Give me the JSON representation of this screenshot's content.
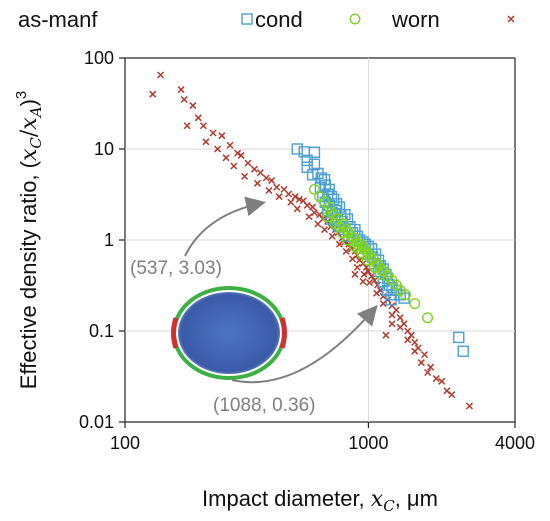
{
  "chart_data": {
    "type": "scatter",
    "title": "",
    "xscale": "log",
    "yscale": "log",
    "xlim": [
      100,
      4000
    ],
    "ylim": [
      0.01,
      100
    ],
    "xticks": [
      100,
      1000,
      4000
    ],
    "xtick_labels": [
      "100",
      "1000",
      "4000"
    ],
    "yticks": [
      0.01,
      0.1,
      1,
      10,
      100
    ],
    "ytick_labels": [
      "0.01",
      "0.1",
      "1",
      "10",
      "100"
    ],
    "grid": true,
    "legend_position": "top",
    "xlabel": {
      "text": "Impact diameter, ",
      "var": "x",
      "sub": "C",
      "unit": ", μm"
    },
    "ylabel": {
      "text": "Effective density ratio, (",
      "var1": "x",
      "sub1": "C",
      "slash": "/",
      "var2": "x",
      "sub2": "A",
      "close": ")",
      "sup": "3"
    },
    "series": [
      {
        "name": "as-manf",
        "marker": "square",
        "color": "#4a9fd4",
        "points": [
          [
            510,
            10.0
          ],
          [
            545,
            9.3
          ],
          [
            560,
            7.5
          ],
          [
            600,
            9.2
          ],
          [
            560,
            6.3
          ],
          [
            600,
            6.8
          ],
          [
            590,
            5.2
          ],
          [
            620,
            5.4
          ],
          [
            640,
            4.8
          ],
          [
            660,
            4.6
          ],
          [
            635,
            3.8
          ],
          [
            665,
            4.0
          ],
          [
            690,
            3.6
          ],
          [
            650,
            3.0
          ],
          [
            680,
            3.2
          ],
          [
            705,
            3.0
          ],
          [
            720,
            2.8
          ],
          [
            665,
            2.6
          ],
          [
            690,
            2.4
          ],
          [
            740,
            2.5
          ],
          [
            760,
            2.3
          ],
          [
            680,
            2.1
          ],
          [
            710,
            2.0
          ],
          [
            735,
            2.1
          ],
          [
            770,
            1.9
          ],
          [
            800,
            1.9
          ],
          [
            705,
            1.7
          ],
          [
            745,
            1.6
          ],
          [
            780,
            1.6
          ],
          [
            820,
            1.7
          ],
          [
            760,
            1.4
          ],
          [
            800,
            1.3
          ],
          [
            840,
            1.4
          ],
          [
            860,
            1.2
          ],
          [
            880,
            1.3
          ],
          [
            830,
            1.1
          ],
          [
            900,
            1.1
          ],
          [
            920,
            1.0
          ],
          [
            950,
            0.95
          ],
          [
            970,
            0.9
          ],
          [
            1000,
            0.85
          ],
          [
            1030,
            0.8
          ],
          [
            1000,
            0.7
          ],
          [
            1040,
            0.65
          ],
          [
            1070,
            0.7
          ],
          [
            1100,
            0.6
          ],
          [
            1060,
            0.55
          ],
          [
            1120,
            0.52
          ],
          [
            1150,
            0.48
          ],
          [
            1100,
            0.45
          ],
          [
            1180,
            0.42
          ],
          [
            1200,
            0.38
          ],
          [
            1150,
            0.35
          ],
          [
            1220,
            0.32
          ],
          [
            1250,
            0.3
          ],
          [
            1200,
            0.28
          ],
          [
            1300,
            0.28
          ],
          [
            1270,
            0.25
          ],
          [
            1350,
            0.25
          ],
          [
            1240,
            0.22
          ],
          [
            1400,
            0.23
          ],
          [
            2350,
            0.085
          ],
          [
            2450,
            0.06
          ]
        ]
      },
      {
        "name": "cond",
        "marker": "circle",
        "color": "#7ed321",
        "points": [
          [
            600,
            3.6
          ],
          [
            630,
            3.0
          ],
          [
            660,
            2.6
          ],
          [
            690,
            2.3
          ],
          [
            700,
            2.0
          ],
          [
            720,
            1.9
          ],
          [
            750,
            1.7
          ],
          [
            680,
            1.8
          ],
          [
            730,
            1.5
          ],
          [
            760,
            1.4
          ],
          [
            790,
            1.5
          ],
          [
            810,
            1.3
          ],
          [
            780,
            1.2
          ],
          [
            830,
            1.2
          ],
          [
            850,
            1.1
          ],
          [
            870,
            1.05
          ],
          [
            820,
            1.0
          ],
          [
            890,
            0.95
          ],
          [
            900,
            0.9
          ],
          [
            930,
            0.9
          ],
          [
            950,
            0.85
          ],
          [
            880,
            0.85
          ],
          [
            910,
            0.8
          ],
          [
            960,
            0.8
          ],
          [
            980,
            0.75
          ],
          [
            1000,
            0.7
          ],
          [
            940,
            0.72
          ],
          [
            1020,
            0.65
          ],
          [
            1050,
            0.62
          ],
          [
            990,
            0.6
          ],
          [
            1080,
            0.55
          ],
          [
            1100,
            0.52
          ],
          [
            1060,
            0.5
          ],
          [
            1130,
            0.48
          ],
          [
            1160,
            0.45
          ],
          [
            1120,
            0.42
          ],
          [
            1200,
            0.4
          ],
          [
            1250,
            0.36
          ],
          [
            1300,
            0.32
          ],
          [
            1350,
            0.28
          ],
          [
            1420,
            0.25
          ],
          [
            1550,
            0.2
          ],
          [
            1750,
            0.14
          ]
        ]
      },
      {
        "name": "worn",
        "marker": "cross",
        "color": "#b03a2e",
        "points": [
          [
            140,
            65
          ],
          [
            130,
            40
          ],
          [
            170,
            45
          ],
          [
            175,
            35
          ],
          [
            190,
            30
          ],
          [
            200,
            22
          ],
          [
            180,
            18
          ],
          [
            210,
            18
          ],
          [
            230,
            15
          ],
          [
            215,
            12
          ],
          [
            250,
            14
          ],
          [
            240,
            10
          ],
          [
            270,
            11
          ],
          [
            290,
            9
          ],
          [
            260,
            8
          ],
          [
            300,
            8.5
          ],
          [
            320,
            7
          ],
          [
            280,
            6.5
          ],
          [
            340,
            6
          ],
          [
            310,
            5
          ],
          [
            360,
            5.5
          ],
          [
            380,
            4.8
          ],
          [
            350,
            4.2
          ],
          [
            400,
            4.5
          ],
          [
            420,
            3.8
          ],
          [
            390,
            3.5
          ],
          [
            450,
            3.6
          ],
          [
            470,
            3.2
          ],
          [
            430,
            3.0
          ],
          [
            500,
            3.0
          ],
          [
            520,
            2.8
          ],
          [
            480,
            2.6
          ],
          [
            540,
            2.7
          ],
          [
            560,
            2.4
          ],
          [
            510,
            2.2
          ],
          [
            590,
            2.3
          ],
          [
            600,
            2.0
          ],
          [
            570,
            1.8
          ],
          [
            630,
            1.9
          ],
          [
            650,
            1.7
          ],
          [
            620,
            1.5
          ],
          [
            680,
            1.6
          ],
          [
            700,
            1.4
          ],
          [
            660,
            1.3
          ],
          [
            730,
            1.3
          ],
          [
            750,
            1.2
          ],
          [
            710,
            1.1
          ],
          [
            780,
            1.05
          ],
          [
            800,
            0.95
          ],
          [
            760,
            0.9
          ],
          [
            830,
            0.9
          ],
          [
            850,
            0.8
          ],
          [
            810,
            0.75
          ],
          [
            880,
            0.75
          ],
          [
            900,
            0.68
          ],
          [
            860,
            0.62
          ],
          [
            920,
            0.6
          ],
          [
            950,
            0.55
          ],
          [
            900,
            0.5
          ],
          [
            980,
            0.5
          ],
          [
            1000,
            0.45
          ],
          [
            960,
            0.42
          ],
          [
            1030,
            0.4
          ],
          [
            1060,
            0.36
          ],
          [
            1010,
            0.34
          ],
          [
            1090,
            0.32
          ],
          [
            1120,
            0.28
          ],
          [
            1080,
            0.26
          ],
          [
            1150,
            0.24
          ],
          [
            1200,
            0.22
          ],
          [
            1150,
            0.2
          ],
          [
            1250,
            0.19
          ],
          [
            1300,
            0.17
          ],
          [
            1250,
            0.15
          ],
          [
            1350,
            0.14
          ],
          [
            1400,
            0.12
          ],
          [
            1350,
            0.11
          ],
          [
            1450,
            0.1
          ],
          [
            1500,
            0.09
          ],
          [
            1450,
            0.08
          ],
          [
            1550,
            0.075
          ],
          [
            1600,
            0.065
          ],
          [
            1550,
            0.06
          ],
          [
            1700,
            0.055
          ],
          [
            1650,
            0.045
          ],
          [
            1800,
            0.04
          ],
          [
            1750,
            0.035
          ],
          [
            1900,
            0.03
          ],
          [
            2000,
            0.028
          ],
          [
            2100,
            0.022
          ],
          [
            2200,
            0.02
          ],
          [
            2600,
            0.015
          ],
          [
            1100,
            0.5
          ],
          [
            1150,
            0.4
          ],
          [
            950,
            0.35
          ],
          [
            880,
            0.42
          ],
          [
            1250,
            0.12
          ],
          [
            1180,
            0.09
          ]
        ]
      }
    ],
    "annotations": [
      {
        "text": "(537, 3.03)",
        "x": 537,
        "y": 3.03
      },
      {
        "text": "(1088, 0.36)",
        "x": 1088,
        "y": 0.36
      }
    ],
    "inset": {
      "type": "ellipse-illustration",
      "fill": "#3c5fb0",
      "rim": "#3cb043",
      "spots": "#d03030"
    }
  }
}
